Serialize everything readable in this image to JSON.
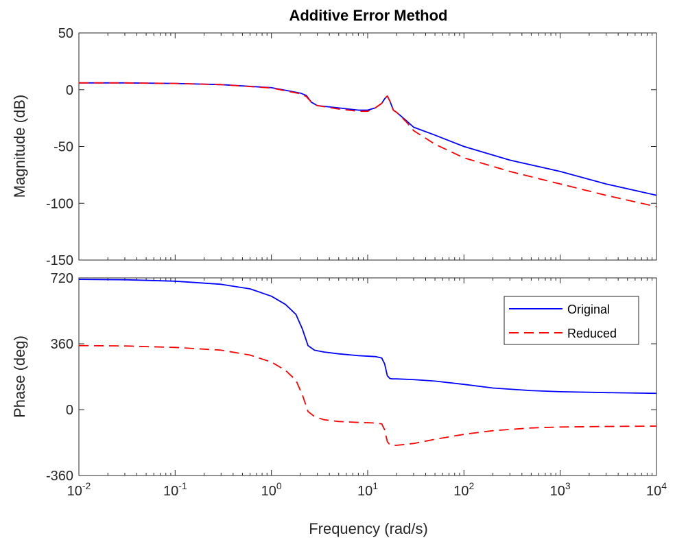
{
  "colors": {
    "original": "#0000ff",
    "reduced": "#ff0000",
    "axis": "#262626"
  },
  "chart_data": {
    "type": "line",
    "title": "Additive Error Method",
    "xlabel": "Frequency  (rad/s)",
    "xscale": "log",
    "xlim": [
      0.01,
      10000
    ],
    "x_tick_labels": [
      {
        "base": "10",
        "exp": "-2"
      },
      {
        "base": "10",
        "exp": "-1"
      },
      {
        "base": "10",
        "exp": "0"
      },
      {
        "base": "10",
        "exp": "1"
      },
      {
        "base": "10",
        "exp": "2"
      },
      {
        "base": "10",
        "exp": "3"
      },
      {
        "base": "10",
        "exp": "4"
      }
    ],
    "legend": {
      "placement": "top-right",
      "entries": [
        "Original",
        "Reduced"
      ]
    },
    "panels": [
      {
        "name": "magnitude",
        "ylabel": "Magnitude (dB)",
        "ylim": [
          -150,
          50
        ],
        "y_ticks": [
          50,
          0,
          -50,
          -100,
          -150
        ],
        "series": [
          {
            "name": "Original",
            "style": "solid",
            "x": [
              0.01,
              0.03,
              0.1,
              0.3,
              1,
              1.5,
              2,
              2.3,
              2.6,
              3,
              5,
              8,
              10,
              12,
              14,
              15,
              16,
              17,
              18.5,
              20,
              25,
              30,
              50,
              100,
              300,
              1000,
              3000,
              10000
            ],
            "y": [
              6,
              6,
              5.5,
              4.5,
              1.8,
              -1,
              -3,
              -5,
              -11,
              -14,
              -16,
              -18,
              -18,
              -16,
              -12,
              -8,
              -5.5,
              -10,
              -18,
              -20,
              -27,
              -33,
              -40,
              -50,
              -62,
              -72,
              -83,
              -93
            ]
          },
          {
            "name": "Reduced",
            "style": "dashed",
            "x": [
              0.01,
              0.03,
              0.1,
              0.3,
              1,
              1.5,
              2,
              2.3,
              2.6,
              3,
              5,
              8,
              10,
              12,
              14,
              15,
              16,
              17,
              18.5,
              20,
              25,
              30,
              50,
              100,
              300,
              1000,
              3000,
              10000
            ],
            "y": [
              6,
              6,
              5.5,
              4.5,
              1.5,
              -1.5,
              -3.5,
              -6,
              -11,
              -14,
              -17,
              -19,
              -19,
              -16,
              -12,
              -8,
              -5.5,
              -10,
              -18,
              -20,
              -28,
              -36,
              -48,
              -60,
              -72,
              -83,
              -93,
              -103
            ]
          }
        ]
      },
      {
        "name": "phase",
        "ylabel": "Phase (deg)",
        "ylim": [
          -360,
          720
        ],
        "y_ticks": [
          720,
          360,
          0,
          -360
        ],
        "series": [
          {
            "name": "Original",
            "style": "solid",
            "x": [
              0.01,
              0.03,
              0.1,
              0.3,
              0.6,
              1,
              1.4,
              1.8,
              2.1,
              2.4,
              2.8,
              3.5,
              5,
              8,
              12,
              14,
              15,
              16,
              17,
              18,
              20,
              30,
              50,
              100,
              200,
              500,
              1000,
              3000,
              10000
            ],
            "y": [
              712,
              710,
              702,
              685,
              660,
              620,
              575,
              520,
              440,
              350,
              325,
              315,
              305,
              295,
              290,
              282,
              250,
              185,
              170,
              168,
              168,
              164,
              156,
              138,
              118,
              104,
              98,
              93,
              89
            ],
            "comment_units": "deg"
          },
          {
            "name": "Reduced",
            "style": "dashed",
            "x": [
              0.01,
              0.03,
              0.1,
              0.3,
              0.6,
              1,
              1.4,
              1.8,
              2.1,
              2.4,
              2.8,
              3.5,
              5,
              8,
              12,
              14,
              15,
              16,
              17,
              18,
              20,
              30,
              50,
              100,
              200,
              500,
              1000,
              3000,
              10000
            ],
            "y": [
              350,
              348,
              340,
              325,
              298,
              260,
              215,
              160,
              80,
              -10,
              -38,
              -55,
              -65,
              -70,
              -73,
              -78,
              -110,
              -175,
              -192,
              -195,
              -195,
              -185,
              -162,
              -135,
              -115,
              -100,
              -95,
              -92,
              -90
            ]
          }
        ]
      }
    ]
  }
}
